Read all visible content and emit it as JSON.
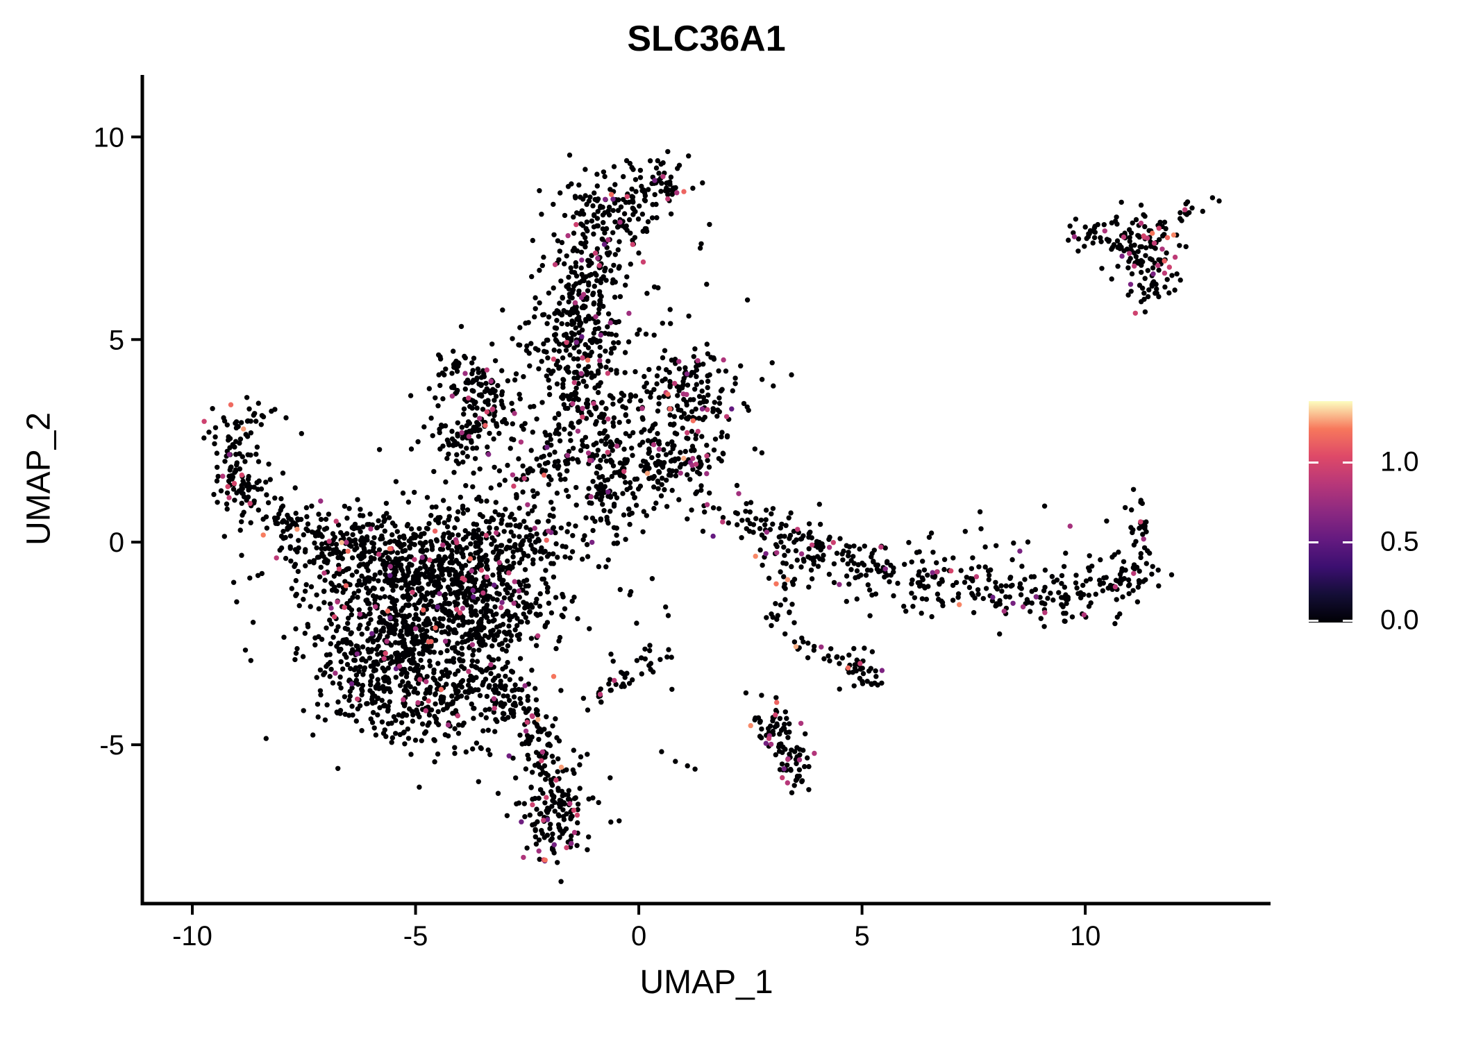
{
  "chart_data": {
    "type": "scatter",
    "title": "SLC36A1",
    "xlabel": "UMAP_1",
    "ylabel": "UMAP_2",
    "x_ticks": [
      -10,
      -5,
      0,
      5,
      10
    ],
    "y_ticks": [
      -5,
      0,
      5,
      10
    ],
    "x_domain": [
      -11.12,
      14.15
    ],
    "y_domain": [
      -8.92,
      11.53
    ],
    "grid": false,
    "background": "#ffffff",
    "axis_color": "#000000",
    "point_radius_px": 3.7,
    "seed": 1337,
    "legend": {
      "kind": "colorbar",
      "position": "right",
      "ticks": [
        0.0,
        0.5,
        1.0
      ],
      "tick_labels": [
        "0.0",
        "0.5",
        "1.0"
      ],
      "domain": [
        0,
        1.38
      ],
      "colormap": "magma",
      "stops": [
        "#000004",
        "#140e36",
        "#3b0f70",
        "#641a80",
        "#8c2981",
        "#b73779",
        "#de4968",
        "#f7785c",
        "#fcfdbf"
      ]
    },
    "clusters": [
      {
        "name": "top-tip-knot",
        "type": "blob",
        "c": [
          0.55,
          8.95
        ],
        "s": [
          0.42,
          0.33
        ],
        "n": 55,
        "cf": 0.07
      },
      {
        "name": "top-bridge",
        "type": "blob",
        "c": [
          -0.1,
          8.55
        ],
        "s": [
          0.35,
          0.3
        ],
        "n": 14,
        "cf": 0.05
      },
      {
        "name": "top-hook",
        "type": "blob",
        "c": [
          -0.85,
          8.25
        ],
        "s": [
          0.55,
          0.5
        ],
        "n": 95,
        "cf": 0.06
      },
      {
        "name": "top-column",
        "type": "stroke",
        "path": [
          [
            -0.8,
            7.7
          ],
          [
            -1.25,
            6.5
          ],
          [
            -1.3,
            5.2
          ],
          [
            -1.25,
            4.3
          ]
        ],
        "w": 0.42,
        "n": 235,
        "cf": 0.07
      },
      {
        "name": "column-bulge",
        "type": "blob",
        "c": [
          -1.4,
          5.0
        ],
        "s": [
          0.65,
          0.7
        ],
        "n": 85,
        "cf": 0.06
      },
      {
        "name": "column-right-sparse",
        "type": "blob",
        "c": [
          0.3,
          6.6
        ],
        "s": [
          0.75,
          1.3
        ],
        "n": 22,
        "cf": 0.04
      },
      {
        "name": "column-left-sparse",
        "type": "blob",
        "c": [
          -1.9,
          6.4
        ],
        "s": [
          0.5,
          0.9
        ],
        "n": 18,
        "cf": 0.04
      },
      {
        "name": "neck",
        "type": "stroke",
        "path": [
          [
            -1.3,
            4.2
          ],
          [
            -1.05,
            3.3
          ],
          [
            -0.9,
            2.8
          ]
        ],
        "w": 0.38,
        "n": 70,
        "cf": 0.06
      },
      {
        "name": "mid-band",
        "type": "blob",
        "c": [
          -1.1,
          2.9
        ],
        "s": [
          1.15,
          0.85
        ],
        "n": 135,
        "cf": 0.05
      },
      {
        "name": "wedge",
        "type": "blob",
        "c": [
          0.55,
          1.95
        ],
        "s": [
          0.6,
          0.45
        ],
        "n": 120,
        "cf": 0.08
      },
      {
        "name": "wedge-tip",
        "type": "stroke",
        "path": [
          [
            1.1,
            1.9
          ],
          [
            1.6,
            1.8
          ]
        ],
        "w": 0.15,
        "n": 12,
        "cf": 0.08
      },
      {
        "name": "center-band",
        "type": "stroke",
        "path": [
          [
            -0.9,
            2.4
          ],
          [
            -0.7,
            1.2
          ],
          [
            -0.6,
            0.3
          ]
        ],
        "w": 0.45,
        "n": 110,
        "cf": 0.06
      },
      {
        "name": "center-left-bridge",
        "type": "blob",
        "c": [
          -2.3,
          2.0
        ],
        "s": [
          0.9,
          0.5
        ],
        "n": 65,
        "cf": 0.05
      },
      {
        "name": "right-mid-cluster",
        "type": "blob",
        "c": [
          1.15,
          3.6
        ],
        "s": [
          0.7,
          0.55
        ],
        "n": 135,
        "cf": 0.09
      },
      {
        "name": "right-mid-halo",
        "type": "blob",
        "c": [
          1.3,
          4.6
        ],
        "s": [
          0.9,
          0.8
        ],
        "n": 20,
        "cf": 0.05
      },
      {
        "name": "arrow-top-arm",
        "type": "stroke",
        "path": [
          [
            -4.45,
            4.5
          ],
          [
            -3.7,
            4.0
          ],
          [
            -3.1,
            3.5
          ]
        ],
        "w": 0.22,
        "n": 75,
        "cf": 0.04
      },
      {
        "name": "arrow-bottom-arm",
        "type": "stroke",
        "path": [
          [
            -3.15,
            3.45
          ],
          [
            -3.8,
            2.7
          ],
          [
            -4.25,
            2.1
          ]
        ],
        "w": 0.22,
        "n": 70,
        "cf": 0.04
      },
      {
        "name": "arrow-fill",
        "type": "blob",
        "c": [
          -4.1,
          3.4
        ],
        "s": [
          0.45,
          0.7
        ],
        "n": 45,
        "cf": 0.04
      },
      {
        "name": "left-arm",
        "type": "stroke",
        "path": [
          [
            -8.25,
            3.3
          ],
          [
            -8.85,
            3.2
          ],
          [
            -9.15,
            2.55
          ],
          [
            -9.0,
            1.6
          ],
          [
            -8.35,
            0.85
          ],
          [
            -7.5,
            0.35
          ],
          [
            -6.5,
            0.0
          ],
          [
            -5.6,
            -0.15
          ]
        ],
        "w": 0.3,
        "n": 185,
        "cf": 0.06
      },
      {
        "name": "left-arm-knot",
        "type": "blob",
        "c": [
          -9.0,
          1.45
        ],
        "s": [
          0.25,
          0.35
        ],
        "n": 40,
        "cf": 0.06
      },
      {
        "name": "main-core",
        "type": "blob",
        "c": [
          -4.9,
          -1.7
        ],
        "s": [
          1.25,
          1.1
        ],
        "n": 640,
        "cf": 0.05
      },
      {
        "name": "main-upper-band",
        "type": "blob",
        "c": [
          -5.3,
          -0.35
        ],
        "s": [
          1.35,
          0.55
        ],
        "n": 300,
        "cf": 0.05
      },
      {
        "name": "main-right-lobe",
        "type": "blob",
        "c": [
          -3.4,
          -1.3
        ],
        "s": [
          0.8,
          0.95
        ],
        "n": 255,
        "cf": 0.05
      },
      {
        "name": "main-lower-left",
        "type": "blob",
        "c": [
          -5.7,
          -2.9
        ],
        "s": [
          0.95,
          0.8
        ],
        "n": 250,
        "cf": 0.05
      },
      {
        "name": "main-bottom-fringe",
        "type": "blob",
        "c": [
          -4.5,
          -4.0
        ],
        "s": [
          0.95,
          0.65
        ],
        "n": 170,
        "cf": 0.06
      },
      {
        "name": "main-ne-shoulder",
        "type": "blob",
        "c": [
          -2.9,
          0.25
        ],
        "s": [
          0.75,
          0.5
        ],
        "n": 120,
        "cf": 0.05
      },
      {
        "name": "main-halo",
        "type": "blob",
        "c": [
          -4.7,
          -1.8
        ],
        "s": [
          2.0,
          1.8
        ],
        "n": 130,
        "cf": 0.04
      },
      {
        "name": "tail",
        "type": "stroke",
        "path": [
          [
            -3.4,
            -3.2
          ],
          [
            -2.8,
            -3.9
          ],
          [
            -2.25,
            -4.9
          ],
          [
            -2.0,
            -5.9
          ]
        ],
        "w": 0.33,
        "n": 135,
        "cf": 0.12
      },
      {
        "name": "tail-teardrop",
        "type": "blob",
        "c": [
          -1.82,
          -6.7
        ],
        "s": [
          0.4,
          0.62
        ],
        "n": 140,
        "cf": 0.14
      },
      {
        "name": "small-arc",
        "type": "stroke",
        "path": [
          [
            -1.15,
            -3.95
          ],
          [
            -0.5,
            -3.5
          ],
          [
            0.1,
            -3.05
          ],
          [
            0.55,
            -2.8
          ]
        ],
        "w": 0.17,
        "n": 38,
        "cf": 0.1
      },
      {
        "name": "right-band",
        "type": "stroke",
        "path": [
          [
            2.5,
            0.45
          ],
          [
            3.7,
            -0.2
          ],
          [
            5.0,
            -0.6
          ],
          [
            6.5,
            -1.0
          ],
          [
            8.1,
            -1.3
          ],
          [
            9.6,
            -1.35
          ],
          [
            10.9,
            -1.0
          ],
          [
            11.4,
            -0.4
          ]
        ],
        "w": 0.34,
        "n": 400,
        "cf": 0.07
      },
      {
        "name": "right-band-hook",
        "type": "stroke",
        "path": [
          [
            11.2,
            -0.1
          ],
          [
            11.25,
            1.0
          ]
        ],
        "w": 0.18,
        "n": 22,
        "cf": 0.1
      },
      {
        "name": "right-band-upper-sparse",
        "type": "blob",
        "c": [
          8.0,
          -0.3
        ],
        "s": [
          2.2,
          0.45
        ],
        "n": 30,
        "cf": 0.04
      },
      {
        "name": "right-band-start",
        "type": "stroke",
        "path": [
          [
            1.5,
            0.8
          ],
          [
            2.4,
            0.5
          ]
        ],
        "w": 0.2,
        "n": 16,
        "cf": 0.06
      },
      {
        "name": "band-to-j-strip",
        "type": "stroke",
        "path": [
          [
            3.1,
            -0.6
          ],
          [
            3.3,
            -1.5
          ],
          [
            3.2,
            -2.1
          ]
        ],
        "w": 0.22,
        "n": 24,
        "cf": 0.05
      },
      {
        "name": "j-chain",
        "type": "stroke",
        "path": [
          [
            3.2,
            -2.1
          ],
          [
            3.6,
            -2.55
          ],
          [
            4.4,
            -2.8
          ],
          [
            5.0,
            -3.2
          ]
        ],
        "w": 0.14,
        "n": 30,
        "cf": 0.15
      },
      {
        "name": "j-knot",
        "type": "blob",
        "c": [
          4.95,
          -3.3
        ],
        "s": [
          0.25,
          0.28
        ],
        "n": 26,
        "cf": 0.1
      },
      {
        "name": "bottom-right-teardrop",
        "type": "stroke",
        "path": [
          [
            2.95,
            -4.3
          ],
          [
            3.1,
            -4.8
          ],
          [
            3.35,
            -5.3
          ],
          [
            3.6,
            -5.8
          ]
        ],
        "w": 0.2,
        "n": 95,
        "cf": 0.12
      },
      {
        "name": "topright-left-chain",
        "type": "stroke",
        "path": [
          [
            9.75,
            7.8
          ],
          [
            10.35,
            7.65
          ]
        ],
        "w": 0.12,
        "n": 13,
        "cf": 0.1
      },
      {
        "name": "topright-knot",
        "type": "blob",
        "c": [
          11.1,
          7.45
        ],
        "s": [
          0.55,
          0.35
        ],
        "n": 95,
        "cf": 0.09
      },
      {
        "name": "topright-lobe",
        "type": "blob",
        "c": [
          11.45,
          6.6
        ],
        "s": [
          0.32,
          0.45
        ],
        "n": 60,
        "cf": 0.12
      },
      {
        "name": "topright-ne-chain",
        "type": "stroke",
        "path": [
          [
            12.05,
            8.0
          ],
          [
            12.5,
            8.35
          ]
        ],
        "w": 0.12,
        "n": 11,
        "cf": 0.05
      }
    ],
    "singles": [
      [
        1.12,
        5.58,
        0
      ],
      [
        3.42,
        4.13,
        0
      ],
      [
        0.35,
        6.3,
        0
      ],
      [
        2.41,
        0.95,
        0
      ],
      [
        2.4,
        -3.72,
        0
      ],
      [
        2.75,
        -3.78,
        0
      ],
      [
        0.51,
        -5.17,
        0
      ],
      [
        0.82,
        -5.41,
        0
      ],
      [
        1.09,
        -5.52,
        0
      ],
      [
        1.26,
        -5.6,
        0
      ],
      [
        12.85,
        8.5,
        0
      ],
      [
        13.0,
        8.42,
        0
      ],
      [
        1.85,
        2.6,
        0
      ],
      [
        2.2,
        1.4,
        0
      ],
      [
        2.6,
        2.3,
        0
      ],
      [
        -6.3,
        1.05,
        0
      ],
      [
        -0.2,
        -1.3,
        0
      ],
      [
        0.3,
        -0.9,
        0
      ],
      [
        -0.05,
        -2.0,
        0
      ],
      [
        0.6,
        -1.6,
        0
      ],
      [
        -3.15,
        -6.2,
        0
      ],
      [
        -2.95,
        -6.75,
        0
      ],
      [
        -1.3,
        -5.3,
        0
      ]
    ]
  },
  "layout_text": {
    "note": ""
  }
}
